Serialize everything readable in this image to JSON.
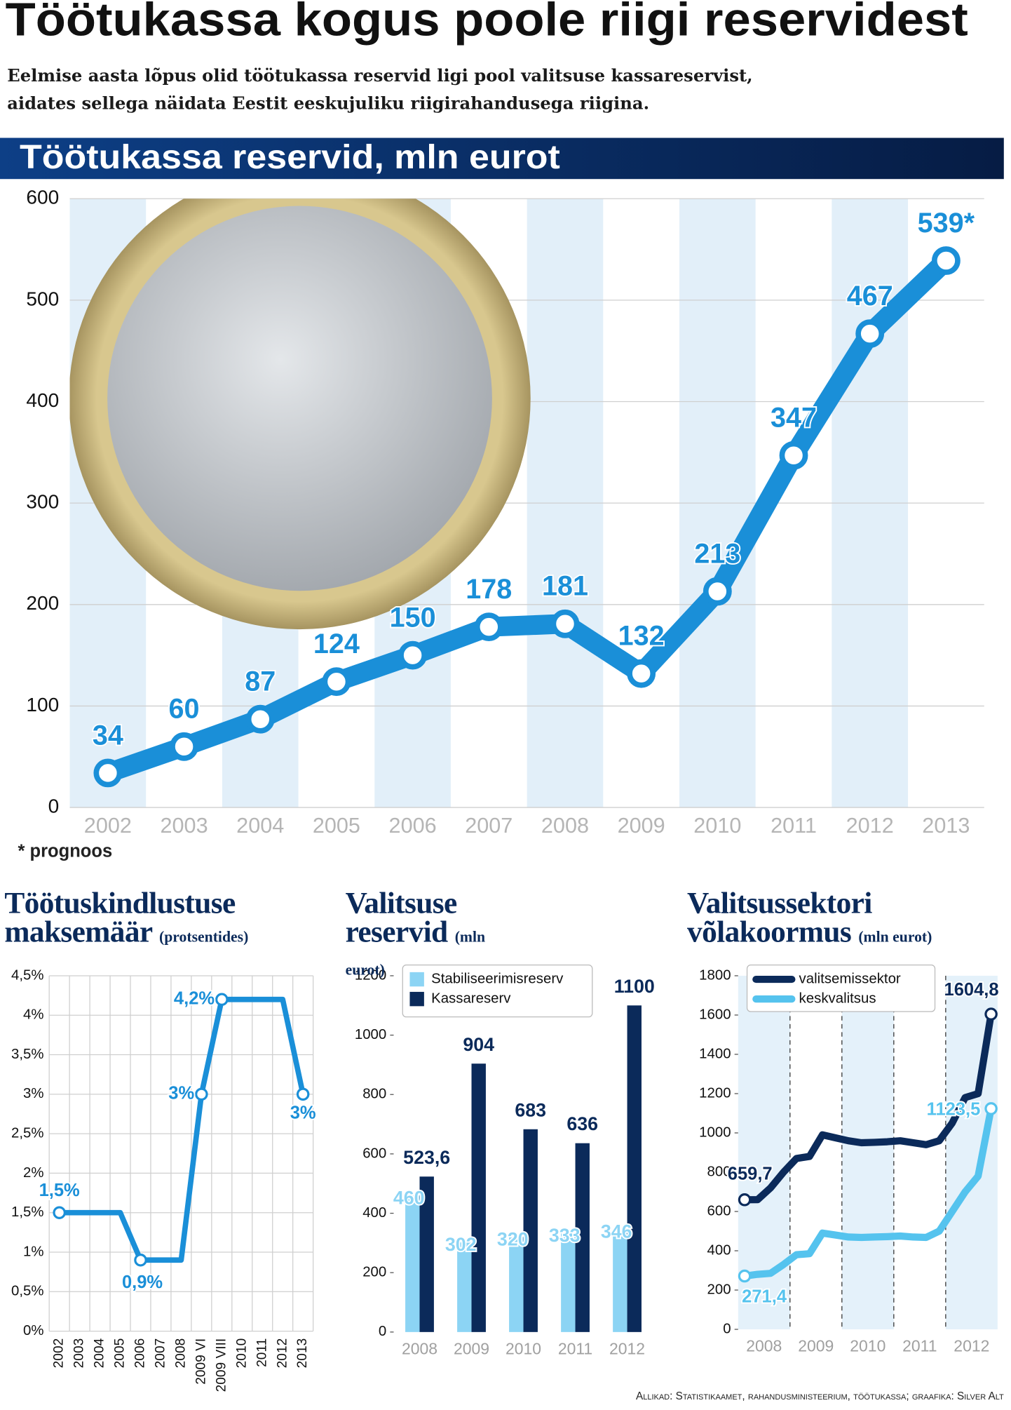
{
  "header": {
    "title": "Töötukassa kogus poole riigi reservidest",
    "subtitle": "Eelmise aasta lõpus olid töötukassa reservid ligi pool valitsuse kassareservist, aidates sellega näidata Eestit eeskujuliku riigirahandusega riigina."
  },
  "chart_data": [
    {
      "type": "line",
      "title": "Töötukassa reservid, mln eurot",
      "categories": [
        "2002",
        "2003",
        "2004",
        "2005",
        "2006",
        "2007",
        "2008",
        "2009",
        "2010",
        "2011",
        "2012",
        "2013"
      ],
      "values": [
        34,
        60,
        87,
        124,
        150,
        178,
        181,
        132,
        213,
        347,
        467,
        539
      ],
      "value_labels": [
        null,
        null,
        null,
        null,
        null,
        null,
        null,
        null,
        null,
        null,
        null,
        "539*"
      ],
      "color": "#1a8fd8",
      "ylim": [
        0,
        600
      ],
      "yticks": [
        0,
        100,
        200,
        300,
        400,
        500,
        600
      ],
      "grid": true,
      "note": "* prognoos"
    },
    {
      "type": "line",
      "title": "Töötuskindlustuse maksemäär",
      "subtitle": "(protsentides)",
      "categories": [
        "2002",
        "2003",
        "2004",
        "2005",
        "2006",
        "2007",
        "2008",
        "2009 VI",
        "2009 VIII",
        "2010",
        "2011",
        "2012",
        "2013"
      ],
      "values": [
        1.5,
        1.5,
        1.5,
        1.5,
        0.9,
        0.9,
        0.9,
        3,
        4.2,
        4.2,
        4.2,
        4.2,
        3
      ],
      "value_labels": [
        "1,5%",
        null,
        null,
        null,
        "0,9%",
        null,
        null,
        "3%",
        "4,2%",
        null,
        null,
        null,
        "3%"
      ],
      "color": "#1a8fd8",
      "ylim": [
        0,
        4.5
      ],
      "yticks": [
        {
          "value": 0,
          "label": "0%"
        },
        {
          "value": 0.5,
          "label": "0,5%"
        },
        {
          "value": 1,
          "label": "1%"
        },
        {
          "value": 1.5,
          "label": "1,5%"
        },
        {
          "value": 2,
          "label": "2%"
        },
        {
          "value": 2.5,
          "label": "2,5%"
        },
        {
          "value": 3,
          "label": "3%"
        },
        {
          "value": 3.5,
          "label": "3,5%"
        },
        {
          "value": 4,
          "label": "4%"
        },
        {
          "value": 4.5,
          "label": "4,5%"
        }
      ],
      "grid": true
    },
    {
      "type": "bar",
      "title": "Valitsuse reservid",
      "subtitle": "(mln eurot)",
      "categories": [
        "2008",
        "2009",
        "2010",
        "2011",
        "2012"
      ],
      "series": [
        {
          "name": "Stabiliseerimisreserv",
          "color": "#8cd4f4",
          "values": [
            460,
            302,
            320,
            333,
            346
          ]
        },
        {
          "name": "Kassareserv",
          "color": "#0b2a5a",
          "values": [
            523.6,
            904,
            683,
            636,
            1100
          ],
          "value_labels": [
            "523,6",
            "904",
            "683",
            "636",
            "1100"
          ]
        }
      ],
      "ylim": [
        0,
        1200
      ],
      "yticks": [
        0,
        200,
        400,
        600,
        800,
        1000,
        1200
      ],
      "grid": false,
      "legend": "upper left"
    },
    {
      "type": "line",
      "title": "Valitsussektori võlakoormus",
      "subtitle": "(mln eurot)",
      "categories": [
        null,
        "2008",
        null,
        null,
        null,
        "2009",
        null,
        null,
        null,
        "2010",
        null,
        null,
        null,
        "2011",
        null,
        null,
        null,
        "2012",
        null,
        null
      ],
      "series": [
        {
          "name": "valitsemissektor",
          "color": "#0b2a5a",
          "values": [
            659.7,
            660,
            720,
            800,
            870,
            880,
            990,
            975,
            960,
            950,
            952,
            955,
            960,
            950,
            940,
            960,
            1050,
            1180,
            1200,
            1604.8
          ],
          "value_labels": [
            "659,7",
            null,
            null,
            null,
            null,
            null,
            null,
            null,
            null,
            null,
            null,
            null,
            null,
            null,
            null,
            null,
            null,
            null,
            null,
            "1604,8"
          ]
        },
        {
          "name": "keskvalitsus",
          "color": "#55c3ee",
          "values": [
            271.4,
            280,
            285,
            330,
            380,
            385,
            490,
            480,
            470,
            468,
            470,
            472,
            475,
            470,
            468,
            500,
            600,
            700,
            780,
            1123.5
          ],
          "value_labels": [
            "271,4",
            null,
            null,
            null,
            null,
            null,
            null,
            null,
            null,
            null,
            null,
            null,
            null,
            null,
            null,
            null,
            null,
            null,
            null,
            "1123,5"
          ]
        }
      ],
      "ylim": [
        0,
        1800
      ],
      "yticks": [
        0,
        200,
        400,
        600,
        800,
        1000,
        1200,
        1400,
        1600,
        1800
      ],
      "grid": false,
      "legend": "upper left"
    }
  ],
  "footer": {
    "source": "Allikad: Statistikaamet, rahandusministeerium, töötukassa; graafika: Silver Alt"
  }
}
